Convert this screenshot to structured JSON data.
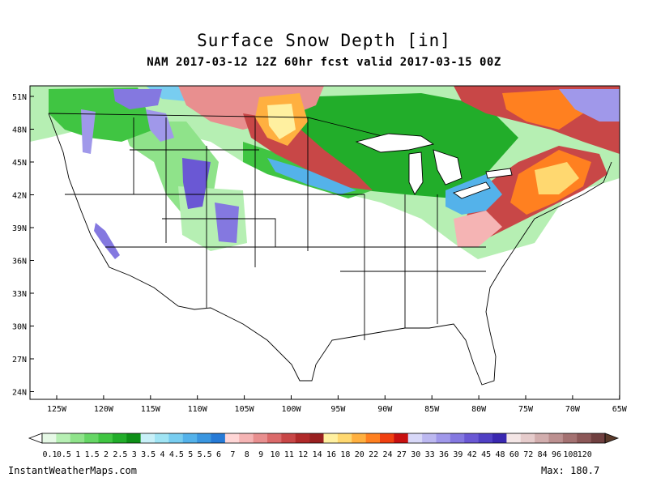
{
  "title": "Surface Snow Depth [in]",
  "subtitle": "NAM 2017-03-12 12Z 60hr fcst valid 2017-03-15 00Z",
  "lat_labels": [
    "51N",
    "48N",
    "45N",
    "42N",
    "39N",
    "36N",
    "33N",
    "30N",
    "27N",
    "24N"
  ],
  "lon_labels": [
    "125W",
    "120W",
    "115W",
    "110W",
    "105W",
    "100W",
    "95W",
    "90W",
    "85W",
    "80W",
    "75W",
    "70W",
    "65W"
  ],
  "legend": {
    "values": [
      "0.1",
      "0.5",
      "1",
      "1.5",
      "2",
      "2.5",
      "3",
      "3.5",
      "4",
      "4.5",
      "5",
      "5.5",
      "6",
      "7",
      "8",
      "9",
      "10",
      "11",
      "12",
      "14",
      "16",
      "18",
      "20",
      "22",
      "24",
      "27",
      "30",
      "33",
      "36",
      "39",
      "42",
      "45",
      "48",
      "60",
      "72",
      "84",
      "96",
      "108",
      "120"
    ],
    "colors": [
      "#e6f9e6",
      "#b6efb3",
      "#8fe38a",
      "#66d665",
      "#40c542",
      "#22ad2a",
      "#0e8f17",
      "#c8f0f8",
      "#a0e4f4",
      "#78cdf0",
      "#54b2ea",
      "#3a96e0",
      "#267ad6",
      "#ffd6d6",
      "#f5b4b4",
      "#e88f8f",
      "#db6a6a",
      "#c84747",
      "#b02a2a",
      "#992020",
      "#fff0a0",
      "#ffd870",
      "#ffb040",
      "#ff8020",
      "#f04010",
      "#c81010",
      "#d8d8f8",
      "#bcb8f0",
      "#a098ea",
      "#8478e0",
      "#6a58d4",
      "#5040c4",
      "#3a28b0",
      "#f4e6e6",
      "#e6cccc",
      "#d2aeae",
      "#bc9090",
      "#a47272",
      "#8c5858",
      "#704040"
    ]
  },
  "credit": "InstantWeatherMaps.com",
  "max_readout": "Max: 180.7"
}
